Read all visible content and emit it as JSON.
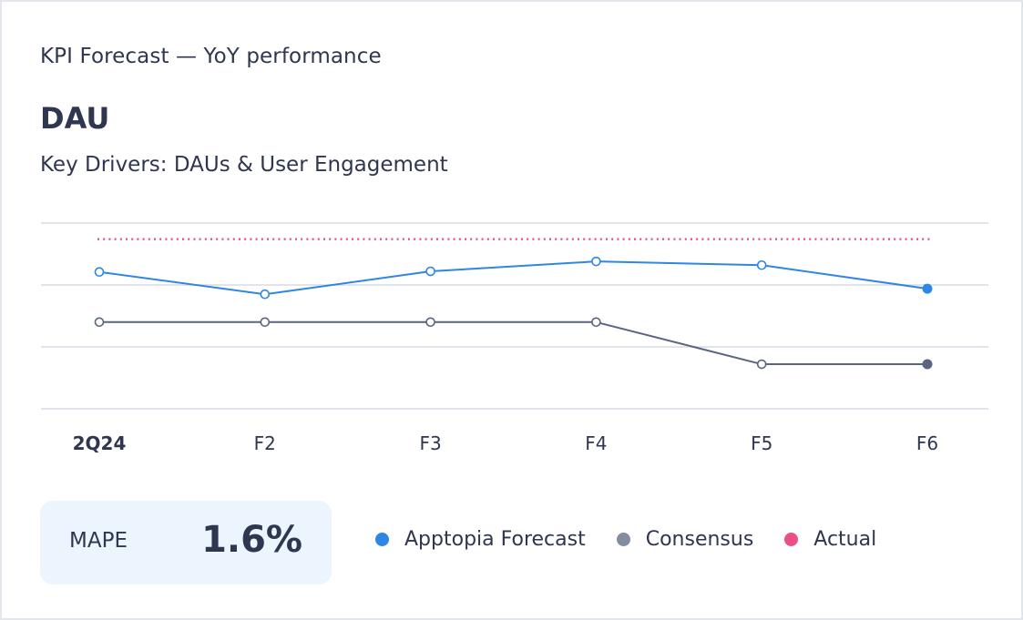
{
  "header": {
    "eyebrow": "KPI Forecast — YoY performance",
    "title": "DAU",
    "subtitle": "Key Drivers: DAUs & User Engagement"
  },
  "mape": {
    "label": "MAPE",
    "value": "1.6%"
  },
  "legend": [
    {
      "label": "Apptopia Forecast",
      "color": "#2f86e3"
    },
    {
      "label": "Consensus",
      "color": "#848d9f"
    },
    {
      "label": "Actual",
      "color": "#ec5083"
    }
  ],
  "colors": {
    "forecast": "#2f86e3",
    "consensus": "#5a6580",
    "actual": "#ec5083",
    "grid": "#e1e4ea"
  },
  "chart_data": {
    "type": "line",
    "title": "DAU",
    "xlabel": "",
    "ylabel": "",
    "categories": [
      "2Q24",
      "F2",
      "F3",
      "F4",
      "F5",
      "F6"
    ],
    "ylim": [
      0,
      3
    ],
    "yticks": [
      0,
      1,
      2,
      3
    ],
    "ytick_labels_shown": false,
    "grid": true,
    "legend_position": "bottom",
    "series": [
      {
        "name": "Apptopia Forecast",
        "values": [
          2.21,
          1.85,
          2.22,
          2.38,
          2.32,
          1.94
        ],
        "style": "solid",
        "last_point_filled": true
      },
      {
        "name": "Consensus",
        "values": [
          1.4,
          1.4,
          1.4,
          1.4,
          0.72,
          0.72
        ],
        "style": "solid",
        "last_point_filled": true
      },
      {
        "name": "Actual",
        "values": [
          2.74,
          2.74,
          2.74,
          2.74,
          2.74,
          2.74
        ],
        "style": "dotted",
        "markers": false
      }
    ]
  }
}
